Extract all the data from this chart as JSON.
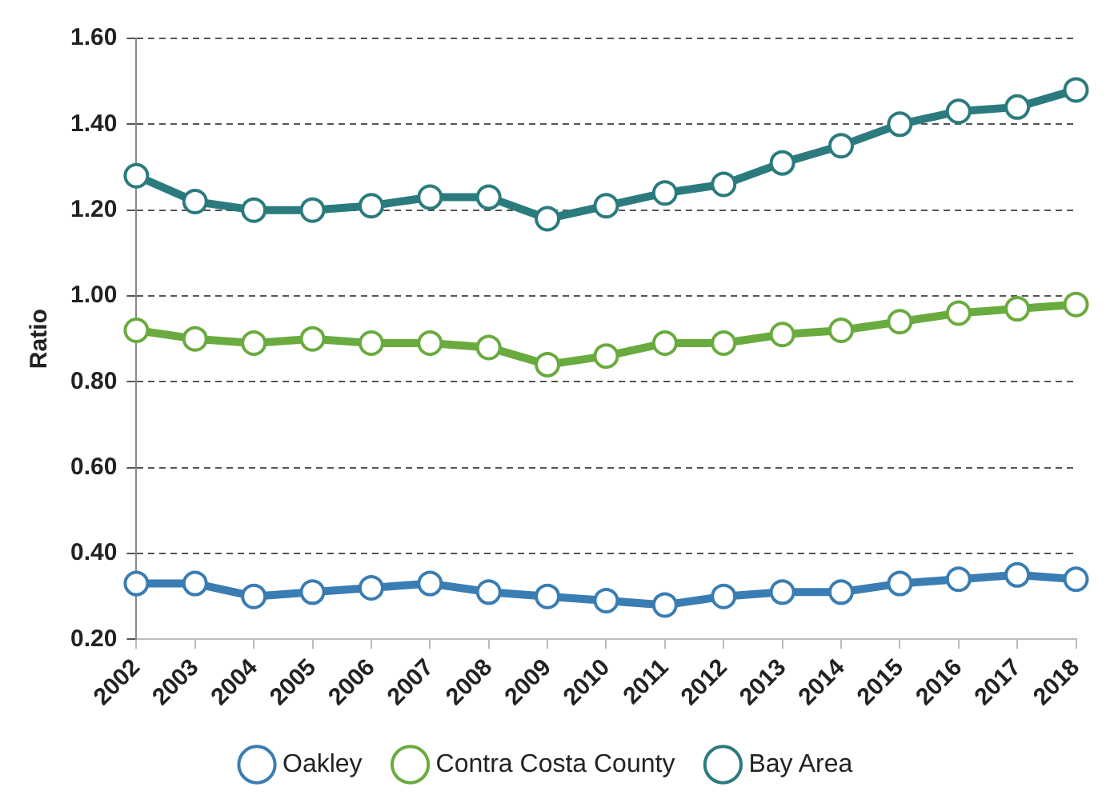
{
  "chart_data": {
    "type": "line",
    "ylabel": "Ratio",
    "categories": [
      "2002",
      "2003",
      "2004",
      "2005",
      "2006",
      "2007",
      "2008",
      "2009",
      "2010",
      "2011",
      "2012",
      "2013",
      "2014",
      "2015",
      "2016",
      "2017",
      "2018"
    ],
    "series": [
      {
        "name": "Oakley",
        "color": "#3a7db2",
        "values": [
          0.33,
          0.33,
          0.3,
          0.31,
          0.32,
          0.33,
          0.31,
          0.3,
          0.29,
          0.28,
          0.3,
          0.31,
          0.31,
          0.33,
          0.34,
          0.35,
          0.34
        ]
      },
      {
        "name": "Contra Costa County",
        "color": "#6aab3f",
        "values": [
          0.92,
          0.9,
          0.89,
          0.9,
          0.89,
          0.89,
          0.88,
          0.84,
          0.86,
          0.89,
          0.89,
          0.91,
          0.92,
          0.94,
          0.96,
          0.97,
          0.98
        ]
      },
      {
        "name": "Bay Area",
        "color": "#2b7b7e",
        "values": [
          1.28,
          1.22,
          1.2,
          1.2,
          1.21,
          1.23,
          1.23,
          1.18,
          1.21,
          1.24,
          1.26,
          1.31,
          1.35,
          1.4,
          1.43,
          1.44,
          1.48
        ]
      }
    ],
    "ylim": [
      0.2,
      1.6
    ],
    "yticks": [
      {
        "value": 0.2,
        "label": "0.20"
      },
      {
        "value": 0.4,
        "label": "0.40"
      },
      {
        "value": 0.6,
        "label": "0.60"
      },
      {
        "value": 0.8,
        "label": "0.80"
      },
      {
        "value": 1.0,
        "label": "1.00"
      },
      {
        "value": 1.2,
        "label": "1.20"
      },
      {
        "value": 1.4,
        "label": "1.40"
      },
      {
        "value": 1.6,
        "label": "1.60"
      }
    ],
    "grid": "y",
    "legend": "bottom",
    "marker": "circle"
  }
}
